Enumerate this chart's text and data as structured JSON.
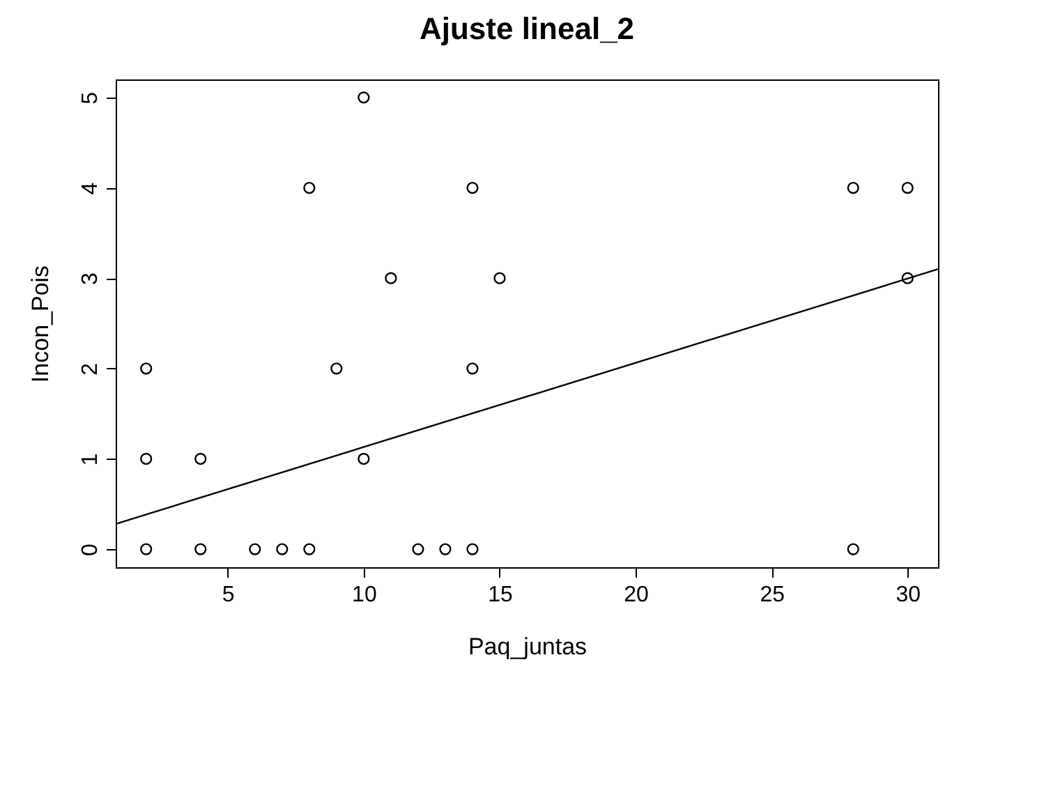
{
  "chart_data": {
    "type": "scatter",
    "title": "Ajuste lineal_2",
    "xlabel": "Paq_juntas",
    "ylabel": "Incon_Pois",
    "xlim": [
      0.88,
      31.12
    ],
    "ylim": [
      -0.2,
      5.2
    ],
    "xticks": [
      5,
      10,
      15,
      20,
      25,
      30
    ],
    "yticks": [
      0,
      1,
      2,
      3,
      4,
      5
    ],
    "grid": false,
    "series": [
      {
        "color": "#000000",
        "marker": "circle",
        "x": [
          2,
          2,
          2,
          4,
          4,
          6,
          7,
          8,
          8,
          9,
          10,
          10,
          11,
          12,
          13,
          14,
          14,
          14,
          15,
          28,
          28,
          30,
          30
        ],
        "values": [
          0,
          1,
          2,
          0,
          1,
          0,
          0,
          0,
          4,
          2,
          1,
          5,
          3,
          0,
          0,
          0,
          2,
          4,
          3,
          0,
          4,
          3,
          4
        ]
      },
      {
        "type": "line",
        "color": "#000000",
        "x": [
          0.88,
          31.12
        ],
        "values": [
          0.28,
          3.1
        ]
      }
    ]
  }
}
